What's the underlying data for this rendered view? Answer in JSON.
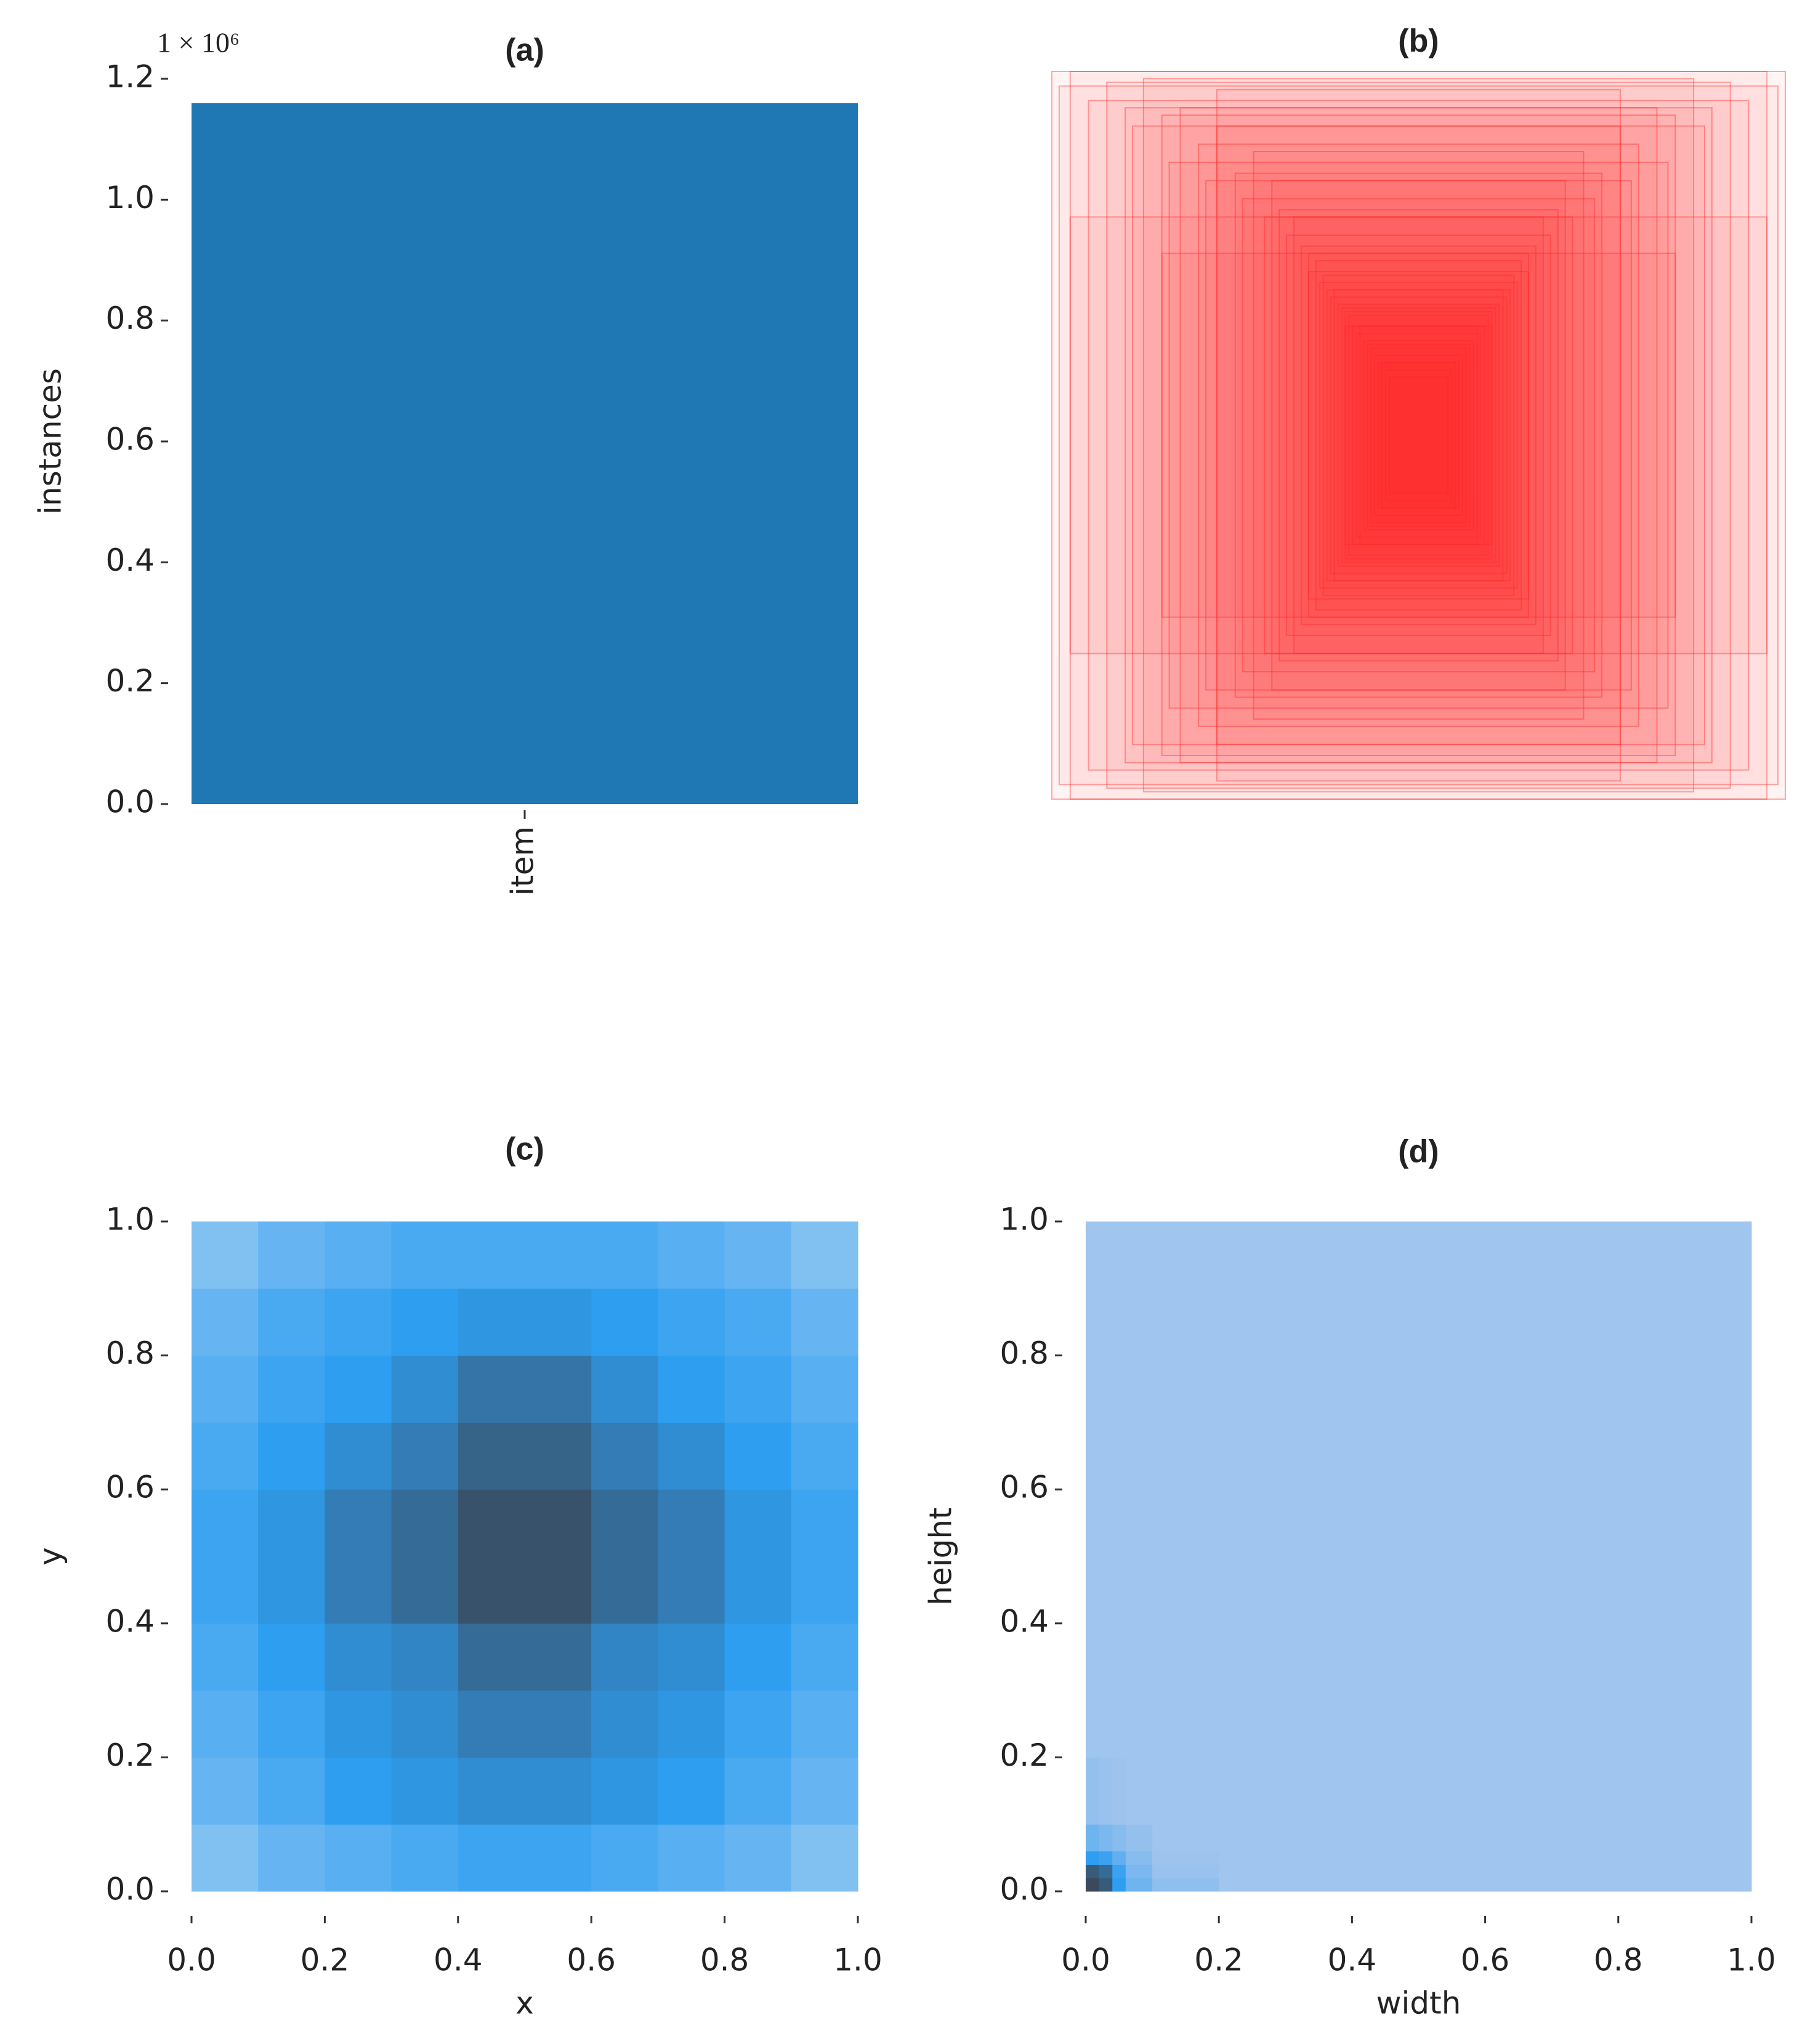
{
  "chart_data": [
    {
      "type": "bar",
      "title": "(a)",
      "ylabel": "instances",
      "y_offset_label": "1 × 10⁶",
      "categories": [
        "item"
      ],
      "values": [
        1160000
      ],
      "color": "#1f77b4",
      "ylim": [
        0,
        1200000
      ],
      "yticks": [
        {
          "value": 0,
          "label": "0.0"
        },
        {
          "value": 200000,
          "label": "0.2"
        },
        {
          "value": 400000,
          "label": "0.4"
        },
        {
          "value": 600000,
          "label": "0.6"
        },
        {
          "value": 800000,
          "label": "0.8"
        },
        {
          "value": 1000000,
          "label": "1.0"
        },
        {
          "value": 1200000,
          "label": "1.2"
        }
      ]
    },
    {
      "type": "boxes",
      "title": "(b)",
      "color": "#ff2a2a",
      "widths": [
        1,
        0.98,
        0.95,
        0.9,
        0.85,
        0.8,
        0.78,
        0.75,
        0.7,
        0.68,
        0.65,
        0.6,
        0.58,
        0.55,
        0.5,
        0.48,
        0.45,
        0.42,
        0.4,
        0.38,
        0.36,
        0.34,
        0.32,
        0.3,
        0.3,
        0.28,
        0.27,
        0.26,
        0.25,
        0.24,
        0.23,
        0.22,
        0.21,
        0.2,
        0.2,
        0.19,
        0.18,
        0.17,
        0.16,
        0.15,
        0.14,
        0.13,
        0.12,
        0.11,
        0.1,
        0.09,
        0.08,
        0.95,
        0.7,
        0.55
      ],
      "heights": [
        1,
        0.96,
        1,
        0.92,
        0.97,
        0.9,
        0.85,
        0.98,
        0.88,
        0.75,
        0.9,
        0.8,
        0.7,
        0.85,
        0.72,
        0.65,
        0.78,
        0.6,
        0.7,
        0.62,
        0.55,
        0.6,
        0.52,
        0.5,
        0.45,
        0.48,
        0.42,
        0.44,
        0.4,
        0.38,
        0.4,
        0.36,
        0.35,
        0.34,
        0.3,
        0.33,
        0.3,
        0.28,
        0.3,
        0.26,
        0.25,
        0.24,
        0.22,
        0.2,
        0.2,
        0.18,
        0.16,
        0.6,
        0.5,
        0.95
      ]
    },
    {
      "type": "hist2d",
      "title": "(c)",
      "xlabel": "x",
      "ylabel": "y",
      "colors": [
        "#b9d8f4",
        "#2e9ef0",
        "#3a4a5c"
      ],
      "xbins": [
        0,
        0.1,
        0.2,
        0.3,
        0.4,
        0.5,
        0.6,
        0.7,
        0.8,
        0.9,
        1
      ],
      "ybins": [
        0,
        0.1,
        0.2,
        0.3,
        0.4,
        0.5,
        0.6,
        0.7,
        0.8,
        0.9,
        1
      ],
      "values": [
        [
          0.2,
          0.3,
          0.35,
          0.4,
          0.45,
          0.45,
          0.4,
          0.35,
          0.3,
          0.2
        ],
        [
          0.3,
          0.4,
          0.5,
          0.55,
          0.6,
          0.6,
          0.55,
          0.5,
          0.4,
          0.3
        ],
        [
          0.35,
          0.45,
          0.55,
          0.6,
          0.7,
          0.7,
          0.6,
          0.55,
          0.45,
          0.35
        ],
        [
          0.4,
          0.5,
          0.6,
          0.65,
          0.8,
          0.8,
          0.65,
          0.6,
          0.5,
          0.4
        ],
        [
          0.45,
          0.55,
          0.7,
          0.8,
          0.95,
          0.95,
          0.8,
          0.7,
          0.55,
          0.45
        ],
        [
          0.45,
          0.55,
          0.7,
          0.8,
          0.95,
          0.95,
          0.8,
          0.7,
          0.55,
          0.45
        ],
        [
          0.4,
          0.5,
          0.6,
          0.7,
          0.85,
          0.85,
          0.7,
          0.6,
          0.5,
          0.4
        ],
        [
          0.35,
          0.45,
          0.5,
          0.6,
          0.75,
          0.75,
          0.6,
          0.5,
          0.45,
          0.35
        ],
        [
          0.3,
          0.4,
          0.45,
          0.5,
          0.55,
          0.55,
          0.5,
          0.45,
          0.4,
          0.3
        ],
        [
          0.2,
          0.3,
          0.35,
          0.4,
          0.4,
          0.4,
          0.4,
          0.35,
          0.3,
          0.2
        ]
      ],
      "xlim": [
        0,
        1
      ],
      "ylim": [
        0,
        1
      ],
      "xticks": [
        {
          "value": 0,
          "label": "0.0"
        },
        0.2,
        0.4,
        0.6,
        0.8,
        {
          "value": 1,
          "label": "1.0"
        }
      ],
      "yticks": [
        {
          "value": 0,
          "label": "0.0"
        },
        0.2,
        0.4,
        0.6,
        0.8,
        {
          "value": 1,
          "label": "1.0"
        }
      ]
    },
    {
      "type": "hist2d",
      "title": "(d)",
      "xlabel": "width",
      "ylabel": "height",
      "colors": [
        "#adc9ee",
        "#2e9ef0",
        "#3a4a5c"
      ],
      "xbins": [
        0,
        0.02,
        0.04,
        0.06,
        0.1,
        0.2,
        0.4,
        0.6,
        0.8,
        1
      ],
      "ybins": [
        0,
        0.02,
        0.04,
        0.06,
        0.1,
        0.2,
        0.4,
        0.6,
        0.8,
        1
      ],
      "values": [
        [
          1,
          0.9,
          0.5,
          0.25,
          0.12,
          0.05,
          0.05,
          0.05,
          0.05
        ],
        [
          0.9,
          0.8,
          0.45,
          0.2,
          0.08,
          0.05,
          0.05,
          0.05,
          0.05
        ],
        [
          0.5,
          0.45,
          0.3,
          0.15,
          0.06,
          0.05,
          0.05,
          0.05,
          0.05
        ],
        [
          0.25,
          0.2,
          0.15,
          0.1,
          0.05,
          0.05,
          0.05,
          0.05,
          0.05
        ],
        [
          0.1,
          0.08,
          0.06,
          0.05,
          0.05,
          0.05,
          0.05,
          0.05,
          0.05
        ],
        [
          0.05,
          0.05,
          0.05,
          0.05,
          0.05,
          0.05,
          0.05,
          0.05,
          0.05
        ],
        [
          0.05,
          0.05,
          0.05,
          0.05,
          0.05,
          0.05,
          0.05,
          0.05,
          0.05
        ],
        [
          0.05,
          0.05,
          0.05,
          0.05,
          0.05,
          0.05,
          0.05,
          0.05,
          0.05
        ],
        [
          0.05,
          0.05,
          0.05,
          0.05,
          0.05,
          0.05,
          0.05,
          0.05,
          0.05
        ]
      ],
      "xlim": [
        0,
        1
      ],
      "ylim": [
        0,
        1
      ],
      "xticks": [
        {
          "value": 0,
          "label": "0.0"
        },
        0.2,
        0.4,
        0.6,
        0.8,
        {
          "value": 1,
          "label": "1.0"
        }
      ],
      "yticks": [
        {
          "value": 0,
          "label": "0.0"
        },
        0.2,
        0.4,
        0.6,
        0.8,
        {
          "value": 1,
          "label": "1.0"
        }
      ]
    }
  ]
}
